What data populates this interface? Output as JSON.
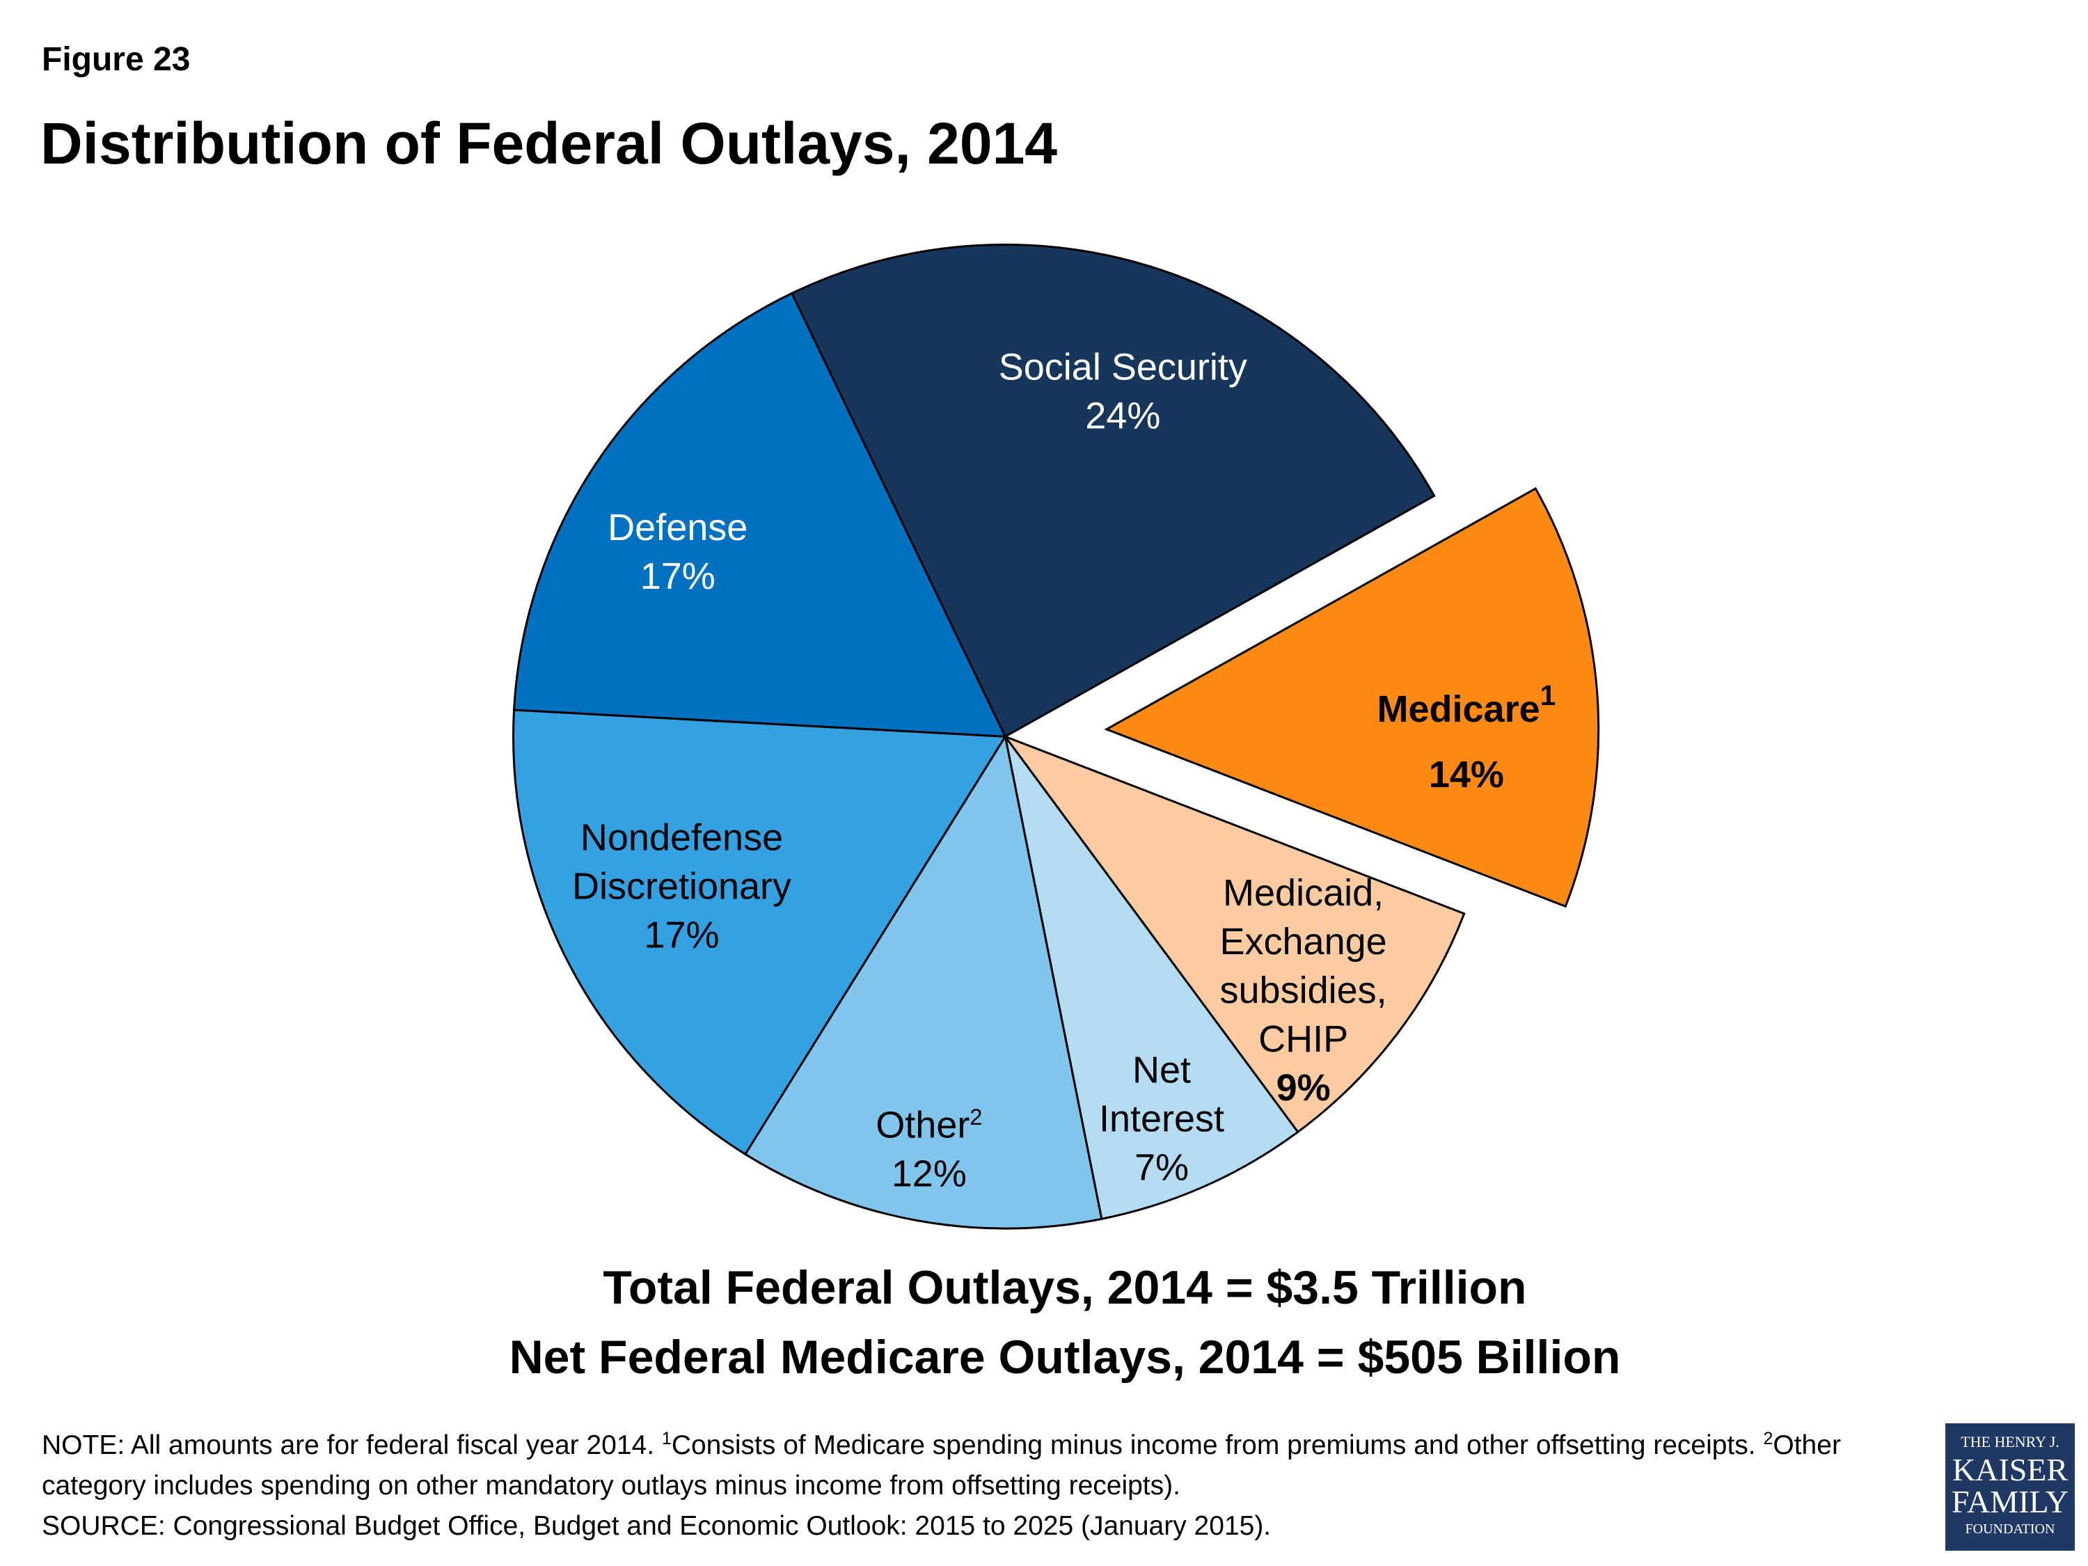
{
  "header": {
    "figure": "Figure 23",
    "title": "Distribution of Federal Outlays, 2014"
  },
  "chart_data": {
    "type": "pie",
    "categories": [
      "Social Security",
      "Medicare",
      "Medicaid, Exchange subsidies, CHIP",
      "Net Interest",
      "Other",
      "Nondefense Discretionary",
      "Defense"
    ],
    "footnote_marks": [
      null,
      "1",
      null,
      null,
      "2",
      null,
      null
    ],
    "values": [
      24,
      14,
      9,
      7,
      12,
      17,
      17
    ],
    "value_labels": [
      "24%",
      "14%",
      "9%",
      "7%",
      "12%",
      "17%",
      "17%"
    ],
    "colors": [
      "#16365c",
      "#fd8a14",
      "#fccb9f",
      "#b3dcf2",
      "#80c5ec",
      "#34a2e2",
      "#0070c0"
    ],
    "exploded": [
      false,
      true,
      false,
      false,
      false,
      false,
      false
    ]
  },
  "totals": [
    "Total Federal Outlays, 2014 = $3.5 Trillion",
    "Net Federal Medicare Outlays, 2014 = $505 Billion"
  ],
  "note": [
    "NOTE: All amounts are for federal fiscal year 2014.  ",
    "1",
    "Consists of Medicare spending minus income from premiums and other offsetting receipts. ",
    "2",
    "Other category includes spending on other mandatory outlays minus income from offsetting receipts)."
  ],
  "source": "SOURCE: Congressional Budget Office, Budget and Economic Outlook: 2015 to 2025 (January 2015).",
  "logo": [
    "THE HENRY J.",
    "KAISER",
    "FAMILY",
    "FOUNDATION"
  ]
}
